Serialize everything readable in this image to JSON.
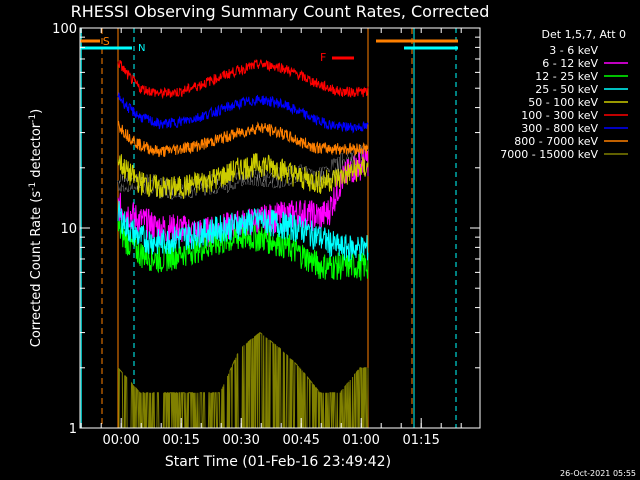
{
  "chart_data": {
    "type": "line",
    "title": "RHESSI Observing Summary Count Rates, Corrected",
    "xlabel": "Start Time (01-Feb-16 23:49:42)",
    "ylabel": "Corrected Count Rate (s",
    "ylabel_sup1": "-1",
    "ylabel_mid": " detector",
    "ylabel_sup2": "-1",
    "ylabel_end": ")",
    "ytick_labels": [
      "100",
      "10",
      "1"
    ],
    "ytick_values": [
      100,
      10,
      1
    ],
    "xtick_labels": [
      "00:00",
      "00:15",
      "00:30",
      "00:45",
      "01:00",
      "01:15"
    ],
    "xtick_values_min": [
      10.3,
      25.3,
      40.3,
      55.3,
      70.3,
      85.3
    ],
    "x_axis_unit": "minutes after 23:49:42",
    "xlim": [
      0,
      100
    ],
    "ylim": [
      1,
      100
    ],
    "yscale": "log",
    "grid": false,
    "timestamp": "26-Oct-2021 05:55",
    "legend": {
      "placement": "right",
      "header": "Det 1,5,7, Att 0",
      "entries": [
        {
          "label": "3 - 6 keV",
          "color": "#000000"
        },
        {
          "label": "6 - 12 keV",
          "color": "#ff00ff"
        },
        {
          "label": "12 - 25 keV",
          "color": "#00ff00"
        },
        {
          "label": "25 - 50 keV",
          "color": "#00ffff"
        },
        {
          "label": "50 - 100 keV",
          "color": "#cccc00"
        },
        {
          "label": "100 - 300 keV",
          "color": "#ff0000"
        },
        {
          "label": "300 - 800 keV",
          "color": "#0000ff"
        },
        {
          "label": "800 - 7000 keV",
          "color": "#ff8000"
        },
        {
          "label": "7000 - 15000 keV",
          "color": "#808000"
        }
      ]
    },
    "annotations": {
      "saa_label": "S",
      "night_label": "N",
      "flare_label": "F",
      "saa_color": "#ff8000",
      "night_color": "#00ffff",
      "flare_color": "#ff0000"
    },
    "data_window_min": [
      9.5,
      72.0
    ],
    "series": [
      {
        "name": "3 - 6 keV",
        "color": "#000000",
        "x": [
          9.5,
          15,
          20,
          25,
          30,
          35,
          40,
          45,
          50,
          55,
          60,
          65,
          70,
          72
        ],
        "y": [
          17,
          17,
          16,
          16,
          16,
          17,
          18,
          18,
          18,
          19,
          18,
          21,
          23,
          23
        ]
      },
      {
        "name": "6 - 12 keV",
        "color": "#ff00ff",
        "x": [
          9.5,
          12,
          15,
          20,
          25,
          30,
          35,
          40,
          45,
          50,
          55,
          60,
          62,
          65,
          68,
          72
        ],
        "y": [
          13,
          12,
          11,
          10,
          10,
          9.5,
          10,
          10.5,
          11,
          11.5,
          12,
          11.5,
          12,
          17,
          20,
          22
        ]
      },
      {
        "name": "12 - 25 keV",
        "color": "#00ff00",
        "x": [
          9.5,
          12,
          15,
          20,
          25,
          30,
          35,
          40,
          45,
          50,
          55,
          60,
          65,
          70,
          72
        ],
        "y": [
          10,
          8.5,
          7.5,
          7,
          7.5,
          8,
          8.5,
          9,
          9,
          8.5,
          7.5,
          6.5,
          6.5,
          6.5,
          6.5
        ]
      },
      {
        "name": "25 - 50 keV",
        "color": "#00ffff",
        "x": [
          9.5,
          12,
          15,
          20,
          25,
          30,
          35,
          40,
          45,
          50,
          55,
          60,
          65,
          70,
          72
        ],
        "y": [
          12,
          10,
          9,
          8.5,
          9,
          9.5,
          10,
          10.5,
          11,
          10.5,
          10,
          9,
          8,
          8,
          8
        ]
      },
      {
        "name": "50 - 100 keV",
        "color": "#cccc00",
        "x": [
          9.5,
          12,
          15,
          20,
          25,
          30,
          35,
          40,
          45,
          50,
          55,
          60,
          65,
          70,
          72
        ],
        "y": [
          22,
          19,
          17,
          16,
          16,
          17,
          18,
          20,
          21,
          20,
          18,
          17,
          18,
          20,
          20
        ]
      },
      {
        "name": "100 - 300 keV",
        "color": "#ff0000",
        "x": [
          9.5,
          12,
          15,
          20,
          25,
          30,
          35,
          40,
          45,
          50,
          55,
          60,
          65,
          70,
          72
        ],
        "y": [
          68,
          58,
          50,
          47,
          48,
          52,
          57,
          62,
          66,
          64,
          58,
          52,
          48,
          48,
          48
        ]
      },
      {
        "name": "300 - 800 keV",
        "color": "#0000ff",
        "x": [
          9.5,
          12,
          15,
          20,
          25,
          30,
          35,
          40,
          45,
          50,
          55,
          60,
          65,
          70,
          72
        ],
        "y": [
          46,
          40,
          36,
          33,
          34,
          36,
          39,
          42,
          44,
          42,
          38,
          34,
          32,
          32,
          32
        ]
      },
      {
        "name": "800 - 7000 keV",
        "color": "#ff8000",
        "x": [
          9.5,
          12,
          15,
          20,
          25,
          30,
          35,
          40,
          45,
          50,
          55,
          60,
          65,
          70,
          72
        ],
        "y": [
          33,
          29,
          26,
          24,
          25,
          26,
          28,
          30,
          32,
          30,
          27,
          25,
          25,
          25,
          25
        ]
      },
      {
        "name": "7000 - 15000 keV",
        "color": "#808000",
        "x": [
          9.5,
          15,
          25,
          35,
          40,
          45,
          50,
          55,
          60,
          65,
          70,
          72
        ],
        "y": [
          2,
          1.5,
          1.5,
          1.5,
          2.5,
          3,
          2.5,
          2,
          1.5,
          1.5,
          2,
          2
        ]
      }
    ]
  }
}
